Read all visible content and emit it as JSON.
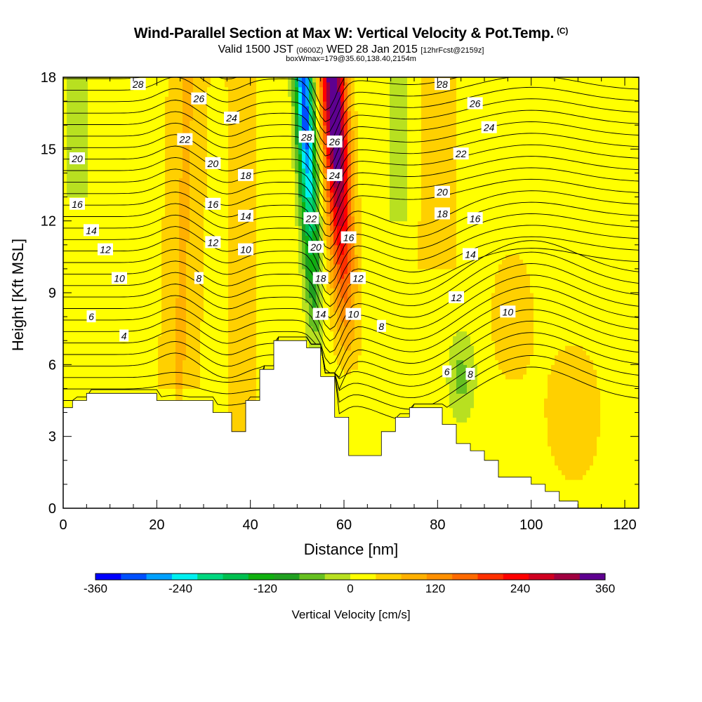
{
  "header": {
    "title": "Wind-Parallel Section at Max W: Vertical Velocity & Pot.Temp.",
    "title_mark": "(C)",
    "valid_prefix": "Valid 1500 JST",
    "valid_zulu": "(0600Z)",
    "valid_date": "WED 28 Jan 2015",
    "forecast": "[12hrFcst@2159z]",
    "box_info": "boxWmax=179@35.60,138.40,2154m"
  },
  "chart_data": {
    "type": "contour",
    "xlabel": "Distance [nm]",
    "ylabel": "Height [Kft MSL]",
    "xlim": [
      0,
      123
    ],
    "ylim": [
      0,
      18
    ],
    "x_ticks": [
      "0",
      "20",
      "40",
      "60",
      "80",
      "100",
      "120"
    ],
    "y_ticks": [
      "0",
      "3",
      "6",
      "9",
      "12",
      "15",
      "18"
    ],
    "fill_variable": "Vertical Velocity [cm/s]",
    "contour_variable": "Potential Temperature (C)",
    "colorbar": {
      "title": "Vertical Velocity [cm/s]",
      "tick_labels": [
        "-360",
        "-240",
        "-120",
        "0",
        "120",
        "240",
        "360"
      ],
      "tick_values": [
        -360,
        -240,
        -120,
        0,
        120,
        240,
        360
      ],
      "colors": [
        "#0000ff",
        "#0050ff",
        "#00a0ff",
        "#00f0f0",
        "#00d880",
        "#00c050",
        "#10b010",
        "#20a020",
        "#66c020",
        "#b8e020",
        "#ffff00",
        "#ffd000",
        "#ffb000",
        "#ff9000",
        "#ff6a00",
        "#ff3000",
        "#ff0000",
        "#d00020",
        "#a00040",
        "#5e0090"
      ]
    },
    "terrain_profile": [
      [
        0,
        4.2
      ],
      [
        2,
        4.2
      ],
      [
        2,
        4.5
      ],
      [
        5,
        4.5
      ],
      [
        5,
        4.8
      ],
      [
        20,
        4.8
      ],
      [
        20,
        4.5
      ],
      [
        32,
        4.5
      ],
      [
        32,
        4.0
      ],
      [
        36,
        4.0
      ],
      [
        36,
        3.2
      ],
      [
        39,
        3.2
      ],
      [
        39,
        4.5
      ],
      [
        42,
        4.5
      ],
      [
        42,
        5.8
      ],
      [
        45,
        5.8
      ],
      [
        45,
        7.0
      ],
      [
        52,
        7.0
      ],
      [
        52,
        6.7
      ],
      [
        55,
        6.7
      ],
      [
        55,
        5.5
      ],
      [
        58,
        5.5
      ],
      [
        58,
        3.8
      ],
      [
        61,
        3.8
      ],
      [
        61,
        2.2
      ],
      [
        68,
        2.2
      ],
      [
        68,
        3.2
      ],
      [
        71,
        3.2
      ],
      [
        71,
        3.8
      ],
      [
        74,
        3.8
      ],
      [
        74,
        4.2
      ],
      [
        81,
        4.2
      ],
      [
        81,
        3.5
      ],
      [
        84,
        3.5
      ],
      [
        84,
        2.7
      ],
      [
        87,
        2.7
      ],
      [
        87,
        2.4
      ],
      [
        90,
        2.4
      ],
      [
        90,
        2.0
      ],
      [
        93,
        2.0
      ],
      [
        93,
        1.3
      ],
      [
        100,
        1.3
      ],
      [
        100,
        1.0
      ],
      [
        103,
        1.0
      ],
      [
        103,
        0.7
      ],
      [
        106,
        0.7
      ],
      [
        106,
        0.3
      ],
      [
        110,
        0.3
      ],
      [
        110,
        0.0
      ],
      [
        123,
        0.0
      ]
    ],
    "w_maxima": [
      {
        "name": "upward core",
        "x": 58.5,
        "y": 16,
        "value": 360
      },
      {
        "name": "downward core",
        "x": 52,
        "y": 16,
        "value": -330
      }
    ],
    "theta_labels": [
      {
        "x": 16,
        "y": 17.7,
        "v": "28"
      },
      {
        "x": 29,
        "y": 17.1,
        "v": "26"
      },
      {
        "x": 36,
        "y": 16.3,
        "v": "24"
      },
      {
        "x": 26,
        "y": 15.4,
        "v": "22"
      },
      {
        "x": 3,
        "y": 14.6,
        "v": "20"
      },
      {
        "x": 32,
        "y": 14.4,
        "v": "20"
      },
      {
        "x": 39,
        "y": 13.9,
        "v": "18"
      },
      {
        "x": 3,
        "y": 12.7,
        "v": "16"
      },
      {
        "x": 32,
        "y": 12.7,
        "v": "16"
      },
      {
        "x": 39,
        "y": 12.2,
        "v": "14"
      },
      {
        "x": 6,
        "y": 11.6,
        "v": "14"
      },
      {
        "x": 32,
        "y": 11.1,
        "v": "12"
      },
      {
        "x": 39,
        "y": 10.8,
        "v": "10"
      },
      {
        "x": 9,
        "y": 10.8,
        "v": "12"
      },
      {
        "x": 12,
        "y": 9.6,
        "v": "10"
      },
      {
        "x": 29,
        "y": 9.6,
        "v": "8"
      },
      {
        "x": 6,
        "y": 8.0,
        "v": "6"
      },
      {
        "x": 13,
        "y": 7.2,
        "v": "4"
      },
      {
        "x": 52,
        "y": 15.5,
        "v": "28"
      },
      {
        "x": 58,
        "y": 15.3,
        "v": "26"
      },
      {
        "x": 58,
        "y": 13.9,
        "v": "24"
      },
      {
        "x": 53,
        "y": 12.1,
        "v": "22"
      },
      {
        "x": 54,
        "y": 10.9,
        "v": "20"
      },
      {
        "x": 61,
        "y": 11.3,
        "v": "16"
      },
      {
        "x": 55,
        "y": 9.6,
        "v": "18"
      },
      {
        "x": 63,
        "y": 9.6,
        "v": "12"
      },
      {
        "x": 55,
        "y": 8.1,
        "v": "14"
      },
      {
        "x": 62,
        "y": 8.1,
        "v": "10"
      },
      {
        "x": 68,
        "y": 7.6,
        "v": "8"
      },
      {
        "x": 81,
        "y": 17.7,
        "v": "28"
      },
      {
        "x": 88,
        "y": 16.9,
        "v": "26"
      },
      {
        "x": 91,
        "y": 15.9,
        "v": "24"
      },
      {
        "x": 85,
        "y": 14.8,
        "v": "22"
      },
      {
        "x": 81,
        "y": 13.2,
        "v": "20"
      },
      {
        "x": 81,
        "y": 12.3,
        "v": "18"
      },
      {
        "x": 88,
        "y": 12.1,
        "v": "16"
      },
      {
        "x": 87,
        "y": 10.6,
        "v": "14"
      },
      {
        "x": 84,
        "y": 8.8,
        "v": "12"
      },
      {
        "x": 95,
        "y": 8.2,
        "v": "10"
      },
      {
        "x": 82,
        "y": 5.7,
        "v": "6"
      },
      {
        "x": 87,
        "y": 5.6,
        "v": "8"
      }
    ]
  }
}
